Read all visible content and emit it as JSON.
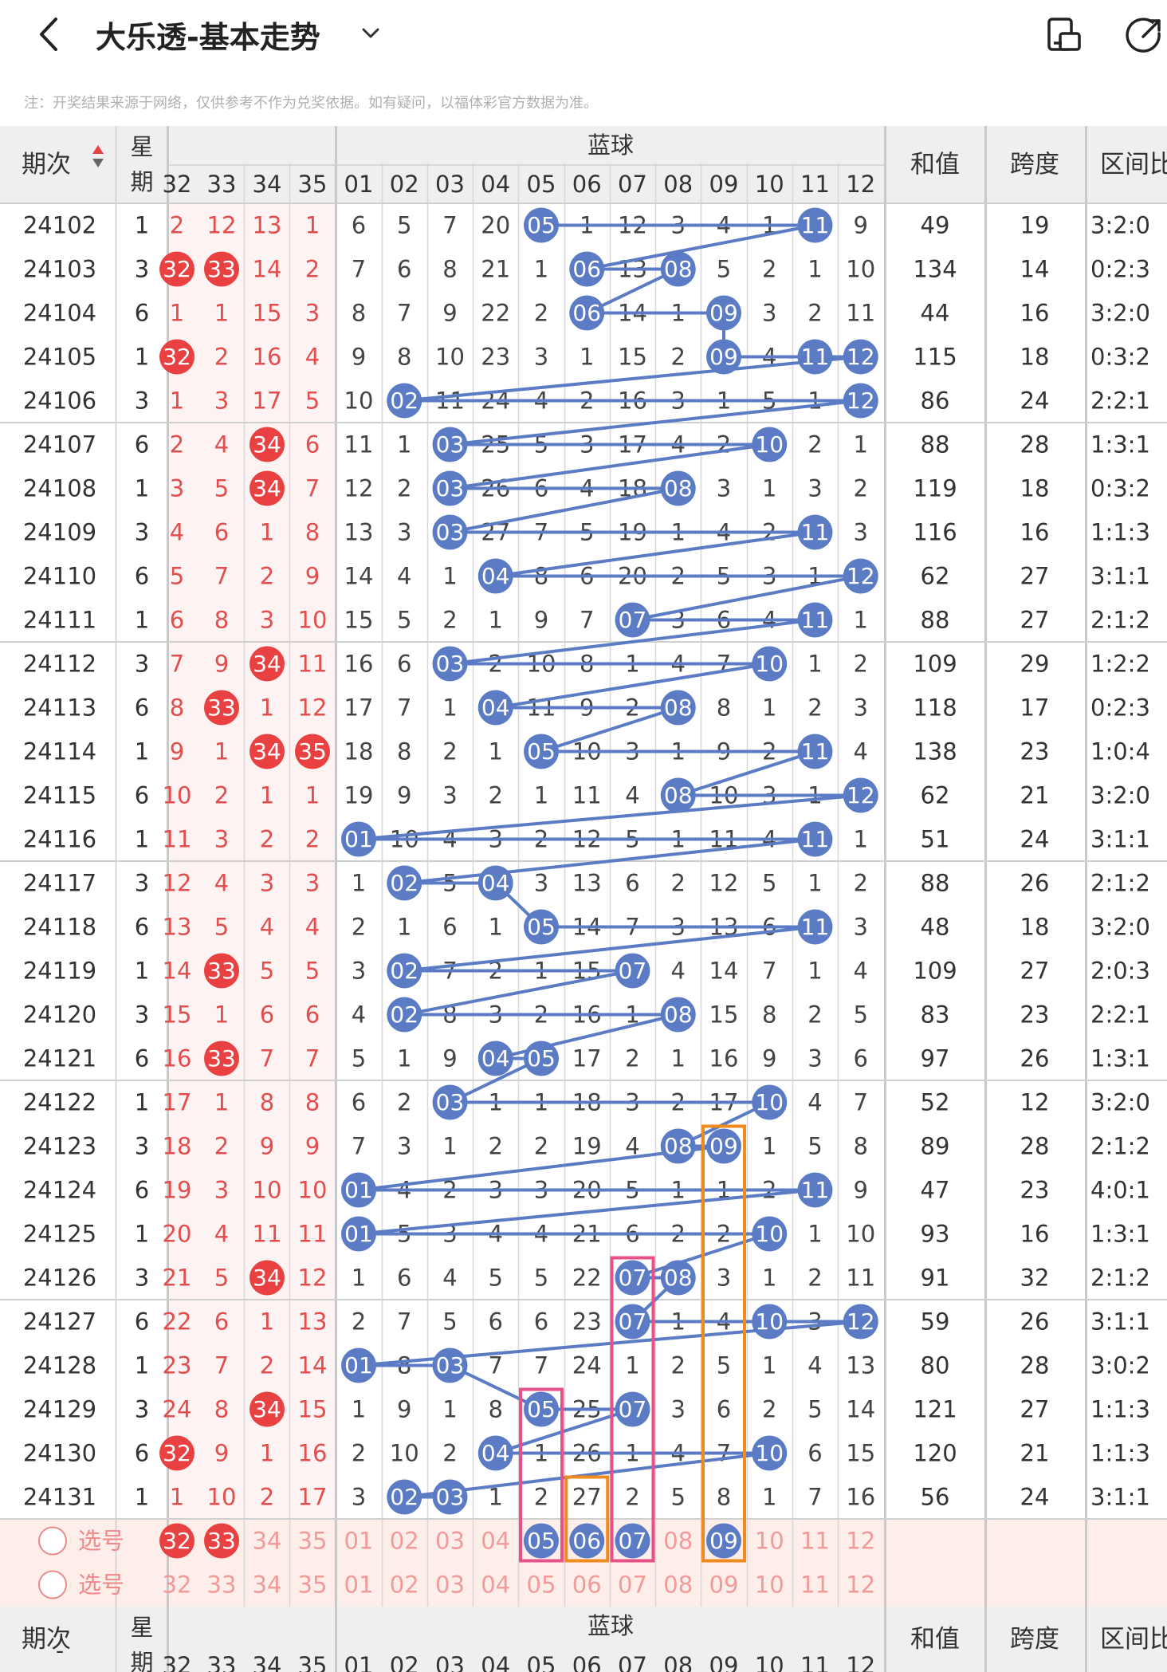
{
  "header": {
    "title": "大乐透-基本走势",
    "notice": "注：开奖结果来源于网络，仅供参考不作为兑奖依据。如有疑问，以福体彩官方数据为准。"
  },
  "table": {
    "col_issue": "期次",
    "col_week": "星期",
    "col_blue_group": "蓝球",
    "col_sum": "和值",
    "col_span": "跨度",
    "col_ratio": "区间比",
    "red_tail_headers": [
      "32",
      "33",
      "34",
      "35"
    ],
    "blue_headers": [
      "01",
      "02",
      "03",
      "04",
      "05",
      "06",
      "07",
      "08",
      "09",
      "10",
      "11",
      "12"
    ],
    "rows": [
      {
        "issue": "24102",
        "week": "1",
        "red": [
          "2",
          "12",
          "13",
          "1"
        ],
        "blue": [
          "6",
          "5",
          "7",
          "20",
          "05",
          "1",
          "12",
          "3",
          "4",
          "1",
          "11",
          "9"
        ],
        "sum": "49",
        "span": "19",
        "ratio": "3:2:0"
      },
      {
        "issue": "24103",
        "week": "3",
        "red": [
          "32",
          "33",
          "14",
          "2"
        ],
        "blue": [
          "7",
          "6",
          "8",
          "21",
          "1",
          "06",
          "13",
          "08",
          "5",
          "2",
          "1",
          "10"
        ],
        "sum": "134",
        "span": "14",
        "ratio": "0:2:3"
      },
      {
        "issue": "24104",
        "week": "6",
        "red": [
          "1",
          "1",
          "15",
          "3"
        ],
        "blue": [
          "8",
          "7",
          "9",
          "22",
          "2",
          "06",
          "14",
          "1",
          "09",
          "3",
          "2",
          "11"
        ],
        "sum": "44",
        "span": "16",
        "ratio": "3:2:0"
      },
      {
        "issue": "24105",
        "week": "1",
        "red": [
          "32",
          "2",
          "16",
          "4"
        ],
        "blue": [
          "9",
          "8",
          "10",
          "23",
          "3",
          "1",
          "15",
          "2",
          "09",
          "4",
          "11",
          "12"
        ],
        "sum": "115",
        "span": "18",
        "ratio": "0:3:2"
      },
      {
        "issue": "24106",
        "week": "3",
        "red": [
          "1",
          "3",
          "17",
          "5"
        ],
        "blue": [
          "10",
          "02",
          "11",
          "24",
          "4",
          "2",
          "16",
          "3",
          "1",
          "5",
          "1",
          "12"
        ],
        "sum": "86",
        "span": "24",
        "ratio": "2:2:1"
      },
      {
        "issue": "24107",
        "week": "6",
        "red": [
          "2",
          "4",
          "34",
          "6"
        ],
        "blue": [
          "11",
          "1",
          "03",
          "25",
          "5",
          "3",
          "17",
          "4",
          "2",
          "10",
          "2",
          "1"
        ],
        "sum": "88",
        "span": "28",
        "ratio": "1:3:1"
      },
      {
        "issue": "24108",
        "week": "1",
        "red": [
          "3",
          "5",
          "34",
          "7"
        ],
        "blue": [
          "12",
          "2",
          "03",
          "26",
          "6",
          "4",
          "18",
          "08",
          "3",
          "1",
          "3",
          "2"
        ],
        "sum": "119",
        "span": "18",
        "ratio": "0:3:2"
      },
      {
        "issue": "24109",
        "week": "3",
        "red": [
          "4",
          "6",
          "1",
          "8"
        ],
        "blue": [
          "13",
          "3",
          "03",
          "27",
          "7",
          "5",
          "19",
          "1",
          "4",
          "2",
          "11",
          "3"
        ],
        "sum": "116",
        "span": "16",
        "ratio": "1:1:3"
      },
      {
        "issue": "24110",
        "week": "6",
        "red": [
          "5",
          "7",
          "2",
          "9"
        ],
        "blue": [
          "14",
          "4",
          "1",
          "04",
          "8",
          "6",
          "20",
          "2",
          "5",
          "3",
          "1",
          "12"
        ],
        "sum": "62",
        "span": "27",
        "ratio": "3:1:1"
      },
      {
        "issue": "24111",
        "week": "1",
        "red": [
          "6",
          "8",
          "3",
          "10"
        ],
        "blue": [
          "15",
          "5",
          "2",
          "1",
          "9",
          "7",
          "07",
          "3",
          "6",
          "4",
          "11",
          "1"
        ],
        "sum": "88",
        "span": "27",
        "ratio": "2:1:2"
      },
      {
        "issue": "24112",
        "week": "3",
        "red": [
          "7",
          "9",
          "34",
          "11"
        ],
        "blue": [
          "16",
          "6",
          "03",
          "2",
          "10",
          "8",
          "1",
          "4",
          "7",
          "10",
          "1",
          "2"
        ],
        "sum": "109",
        "span": "29",
        "ratio": "1:2:2"
      },
      {
        "issue": "24113",
        "week": "6",
        "red": [
          "8",
          "33",
          "1",
          "12"
        ],
        "blue": [
          "17",
          "7",
          "1",
          "04",
          "11",
          "9",
          "2",
          "08",
          "8",
          "1",
          "2",
          "3"
        ],
        "sum": "118",
        "span": "17",
        "ratio": "0:2:3"
      },
      {
        "issue": "24114",
        "week": "1",
        "red": [
          "9",
          "1",
          "34",
          "35"
        ],
        "blue": [
          "18",
          "8",
          "2",
          "1",
          "05",
          "10",
          "3",
          "1",
          "9",
          "2",
          "11",
          "4"
        ],
        "sum": "138",
        "span": "23",
        "ratio": "1:0:4"
      },
      {
        "issue": "24115",
        "week": "6",
        "red": [
          "10",
          "2",
          "1",
          "1"
        ],
        "blue": [
          "19",
          "9",
          "3",
          "2",
          "1",
          "11",
          "4",
          "08",
          "10",
          "3",
          "1",
          "12"
        ],
        "sum": "62",
        "span": "21",
        "ratio": "3:2:0"
      },
      {
        "issue": "24116",
        "week": "1",
        "red": [
          "11",
          "3",
          "2",
          "2"
        ],
        "blue": [
          "01",
          "10",
          "4",
          "3",
          "2",
          "12",
          "5",
          "1",
          "11",
          "4",
          "11",
          "1"
        ],
        "sum": "51",
        "span": "24",
        "ratio": "3:1:1"
      },
      {
        "issue": "24117",
        "week": "3",
        "red": [
          "12",
          "4",
          "3",
          "3"
        ],
        "blue": [
          "1",
          "02",
          "5",
          "04",
          "3",
          "13",
          "6",
          "2",
          "12",
          "5",
          "1",
          "2"
        ],
        "sum": "88",
        "span": "26",
        "ratio": "2:1:2"
      },
      {
        "issue": "24118",
        "week": "6",
        "red": [
          "13",
          "5",
          "4",
          "4"
        ],
        "blue": [
          "2",
          "1",
          "6",
          "1",
          "05",
          "14",
          "7",
          "3",
          "13",
          "6",
          "11",
          "3"
        ],
        "sum": "48",
        "span": "18",
        "ratio": "3:2:0"
      },
      {
        "issue": "24119",
        "week": "1",
        "red": [
          "14",
          "33",
          "5",
          "5"
        ],
        "blue": [
          "3",
          "02",
          "7",
          "2",
          "1",
          "15",
          "07",
          "4",
          "14",
          "7",
          "1",
          "4"
        ],
        "sum": "109",
        "span": "27",
        "ratio": "2:0:3"
      },
      {
        "issue": "24120",
        "week": "3",
        "red": [
          "15",
          "1",
          "6",
          "6"
        ],
        "blue": [
          "4",
          "02",
          "8",
          "3",
          "2",
          "16",
          "1",
          "08",
          "15",
          "8",
          "2",
          "5"
        ],
        "sum": "83",
        "span": "23",
        "ratio": "2:2:1"
      },
      {
        "issue": "24121",
        "week": "6",
        "red": [
          "16",
          "33",
          "7",
          "7"
        ],
        "blue": [
          "5",
          "1",
          "9",
          "04",
          "05",
          "17",
          "2",
          "1",
          "16",
          "9",
          "3",
          "6"
        ],
        "sum": "97",
        "span": "26",
        "ratio": "1:3:1"
      },
      {
        "issue": "24122",
        "week": "1",
        "red": [
          "17",
          "1",
          "8",
          "8"
        ],
        "blue": [
          "6",
          "2",
          "03",
          "1",
          "1",
          "18",
          "3",
          "2",
          "17",
          "10",
          "4",
          "7"
        ],
        "sum": "52",
        "span": "12",
        "ratio": "3:2:0"
      },
      {
        "issue": "24123",
        "week": "3",
        "red": [
          "18",
          "2",
          "9",
          "9"
        ],
        "blue": [
          "7",
          "3",
          "1",
          "2",
          "2",
          "19",
          "4",
          "08",
          "09",
          "1",
          "5",
          "8"
        ],
        "sum": "89",
        "span": "28",
        "ratio": "2:1:2"
      },
      {
        "issue": "24124",
        "week": "6",
        "red": [
          "19",
          "3",
          "10",
          "10"
        ],
        "blue": [
          "01",
          "4",
          "2",
          "3",
          "3",
          "20",
          "5",
          "1",
          "1",
          "2",
          "11",
          "9"
        ],
        "sum": "47",
        "span": "23",
        "ratio": "4:0:1"
      },
      {
        "issue": "24125",
        "week": "1",
        "red": [
          "20",
          "4",
          "11",
          "11"
        ],
        "blue": [
          "01",
          "5",
          "3",
          "4",
          "4",
          "21",
          "6",
          "2",
          "2",
          "10",
          "1",
          "10"
        ],
        "sum": "93",
        "span": "16",
        "ratio": "1:3:1"
      },
      {
        "issue": "24126",
        "week": "3",
        "red": [
          "21",
          "5",
          "34",
          "12"
        ],
        "blue": [
          "1",
          "6",
          "4",
          "5",
          "5",
          "22",
          "07",
          "08",
          "3",
          "1",
          "2",
          "11"
        ],
        "sum": "91",
        "span": "32",
        "ratio": "2:1:2"
      },
      {
        "issue": "24127",
        "week": "6",
        "red": [
          "22",
          "6",
          "1",
          "13"
        ],
        "blue": [
          "2",
          "7",
          "5",
          "6",
          "6",
          "23",
          "07",
          "1",
          "4",
          "10",
          "3",
          "12"
        ],
        "sum": "59",
        "span": "26",
        "ratio": "3:1:1"
      },
      {
        "issue": "24128",
        "week": "1",
        "red": [
          "23",
          "7",
          "2",
          "14"
        ],
        "blue": [
          "01",
          "8",
          "03",
          "7",
          "7",
          "24",
          "1",
          "2",
          "5",
          "1",
          "4",
          "13"
        ],
        "sum": "80",
        "span": "28",
        "ratio": "3:0:2"
      },
      {
        "issue": "24129",
        "week": "3",
        "red": [
          "24",
          "8",
          "34",
          "15"
        ],
        "blue": [
          "1",
          "9",
          "1",
          "8",
          "05",
          "25",
          "07",
          "3",
          "6",
          "2",
          "5",
          "14"
        ],
        "sum": "121",
        "span": "27",
        "ratio": "1:1:3"
      },
      {
        "issue": "24130",
        "week": "6",
        "red": [
          "32",
          "9",
          "1",
          "16"
        ],
        "blue": [
          "2",
          "10",
          "2",
          "04",
          "1",
          "26",
          "1",
          "4",
          "7",
          "10",
          "6",
          "15"
        ],
        "sum": "120",
        "span": "21",
        "ratio": "1:1:3"
      },
      {
        "issue": "24131",
        "week": "1",
        "red": [
          "1",
          "10",
          "2",
          "17"
        ],
        "blue": [
          "3",
          "02",
          "03",
          "1",
          "2",
          "27",
          "2",
          "5",
          "8",
          "1",
          "7",
          "16"
        ],
        "sum": "56",
        "span": "24",
        "ratio": "3:1:1"
      }
    ],
    "hit_red": [
      [],
      [
        0,
        1
      ],
      [],
      [
        0
      ],
      [],
      [
        2
      ],
      [
        2
      ],
      [],
      [],
      [],
      [
        2
      ],
      [
        1
      ],
      [
        2,
        3
      ],
      [],
      [],
      [],
      [],
      [
        1
      ],
      [],
      [
        1
      ],
      [],
      [],
      [],
      [],
      [
        2
      ],
      [],
      [],
      [
        2
      ],
      [
        0
      ],
      []
    ],
    "pick_label": "选号",
    "pick_red": [
      "32",
      "33",
      "34",
      "35"
    ],
    "pick_blue": [
      "01",
      "02",
      "03",
      "04",
      "05",
      "06",
      "07",
      "08",
      "09",
      "10",
      "11",
      "12"
    ],
    "pick_red_selected": [
      0,
      1
    ],
    "pick_blue_selected": [
      4,
      5,
      6,
      8
    ]
  },
  "colors": {
    "blue_ball": "#5b7cc4",
    "red_ball": "#e94141",
    "red_text": "#e24d4d",
    "pick_bg": "#fdeeea",
    "pink_box": "#e8508a",
    "orange_box": "#f08a1e"
  }
}
